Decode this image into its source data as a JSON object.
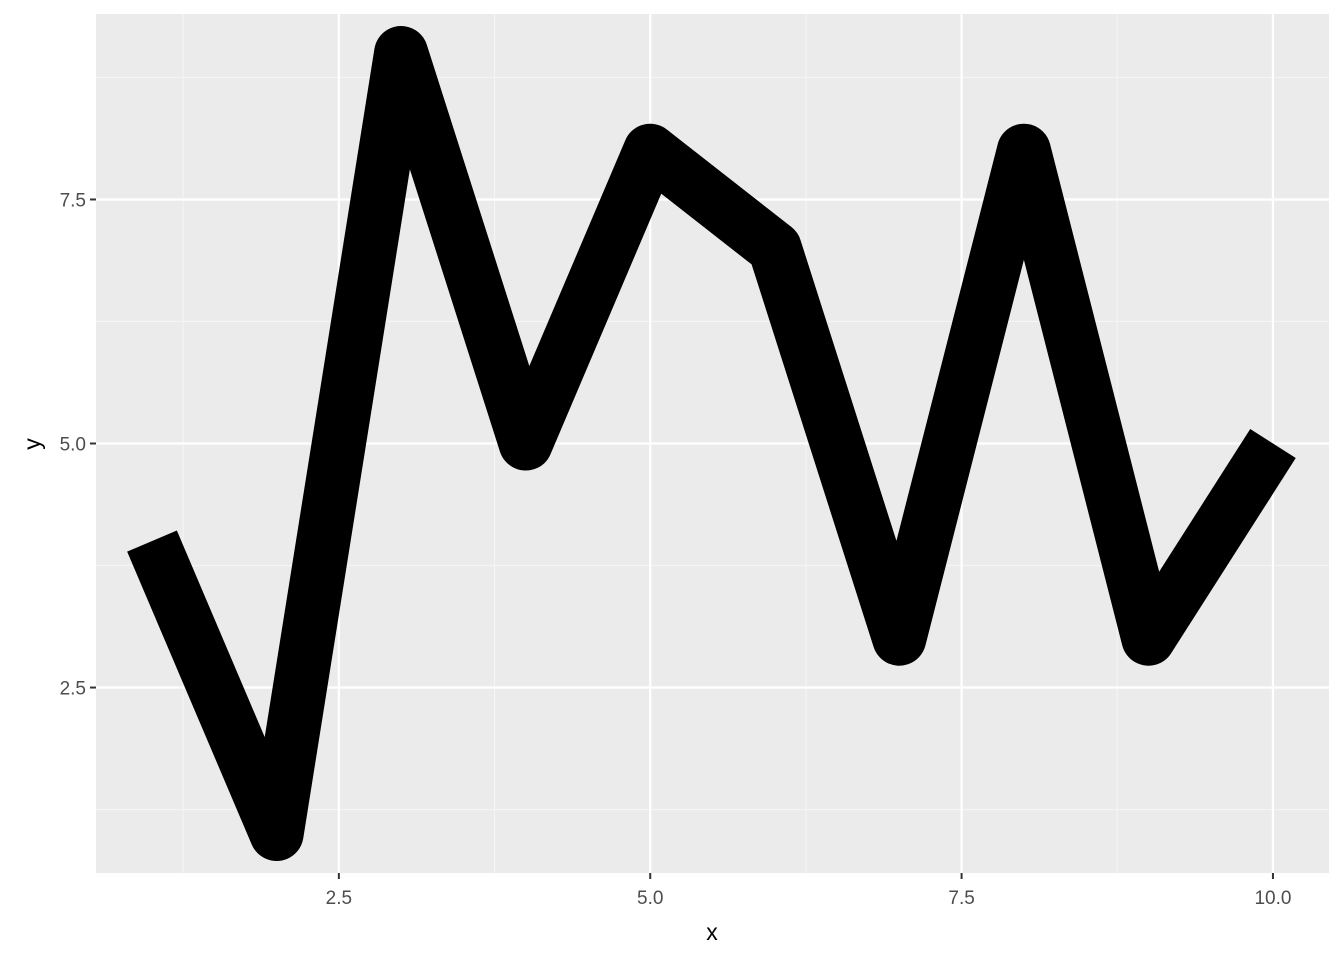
{
  "chart_data": {
    "type": "line",
    "title": "",
    "xlabel": "x",
    "ylabel": "y",
    "xlim": [
      0.55,
      10.45
    ],
    "ylim": [
      0.6,
      9.4
    ],
    "x_ticks": [
      2.5,
      5.0,
      7.5,
      10.0
    ],
    "x_tick_labels": [
      "2.5",
      "5.0",
      "7.5",
      "10.0"
    ],
    "y_ticks": [
      2.5,
      5.0,
      7.5
    ],
    "y_tick_labels": [
      "2.5",
      "5.0",
      "7.5"
    ],
    "grid": true,
    "legend": "none",
    "series": [
      {
        "x": [
          1,
          2,
          3,
          4,
          5,
          6,
          7,
          8,
          9,
          10
        ],
        "y": [
          4.0,
          1.0,
          9.0,
          5.0,
          8.0,
          7.0,
          3.0,
          8.0,
          3.0,
          5.0
        ]
      }
    ],
    "colors": {
      "panel_background": "#ebebeb",
      "grid_major": "#ffffff",
      "grid_minor": "#f5f5f5",
      "line": "#000000",
      "tick_mark": "#333333"
    }
  }
}
